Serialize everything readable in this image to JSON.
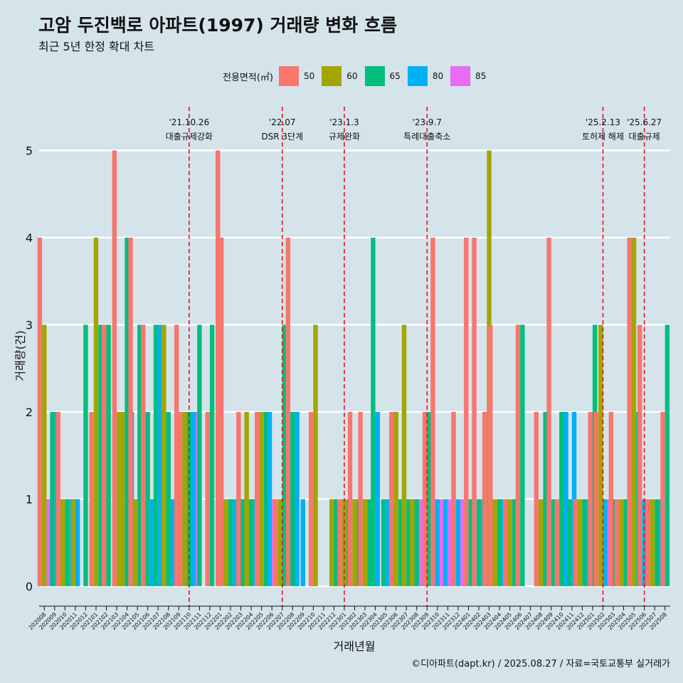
{
  "header": {
    "title": "고암 두진백로 아파트(1997) 거래량 변화 흐름",
    "subtitle": "최근 5년 한정 확대 차트"
  },
  "legend": {
    "title": "전용면적(㎡)",
    "items": [
      {
        "label": "50",
        "color": "#f8766d"
      },
      {
        "label": "60",
        "color": "#a3a500"
      },
      {
        "label": "65",
        "color": "#00bf7d"
      },
      {
        "label": "80",
        "color": "#00b0f6"
      },
      {
        "label": "85",
        "color": "#e76bf3"
      }
    ]
  },
  "caption": "©디아파트(dapt.kr) / 2025.08.27 / 자료=국토교통부 실거래가",
  "chart_data": {
    "type": "bar",
    "xlabel": "거래년월",
    "ylabel": "거래량(건)",
    "ylim": [
      -0.2,
      5.6
    ],
    "yticks": [
      0,
      1,
      2,
      3,
      4,
      5
    ],
    "grid": true,
    "legend_position": "top",
    "categories": [
      "202008",
      "202009",
      "202010",
      "202011",
      "202012",
      "202101",
      "202102",
      "202103",
      "202104",
      "202105",
      "202106",
      "202107",
      "202108",
      "202109",
      "202110",
      "202111",
      "202112",
      "202201",
      "202202",
      "202203",
      "202204",
      "202205",
      "202206",
      "202207",
      "202208",
      "202209",
      "202210",
      "202211",
      "202212",
      "202301",
      "202302",
      "202303",
      "202304",
      "202305",
      "202306",
      "202307",
      "202308",
      "202309",
      "202310",
      "202311",
      "202312",
      "202401",
      "202402",
      "202403",
      "202404",
      "202405",
      "202406",
      "202407",
      "202408",
      "202409",
      "202410",
      "202411",
      "202412",
      "202501",
      "202502",
      "202503",
      "202504",
      "202505",
      "202506",
      "202507",
      "202508"
    ],
    "series": [
      {
        "name": "50",
        "color": "#f8766d",
        "values": [
          4,
          0,
          2,
          0,
          0,
          2,
          3,
          5,
          0,
          4,
          3,
          0,
          0,
          3,
          2,
          0,
          2,
          5,
          4,
          2,
          0,
          2,
          0,
          1,
          4,
          0,
          2,
          0,
          0,
          1,
          2,
          2,
          0,
          0,
          2,
          0,
          0,
          2,
          4,
          0,
          2,
          4,
          4,
          2,
          3,
          1,
          3,
          0,
          2,
          4,
          1,
          0,
          1,
          2,
          2,
          2,
          1,
          4,
          3,
          1,
          2
        ]
      },
      {
        "name": "60",
        "color": "#a3a500",
        "values": [
          3,
          0,
          1,
          1,
          0,
          4,
          0,
          2,
          2,
          1,
          0,
          0,
          3,
          0,
          2,
          0,
          0,
          0,
          1,
          0,
          2,
          2,
          0,
          1,
          0,
          0,
          3,
          0,
          1,
          1,
          1,
          1,
          0,
          0,
          2,
          3,
          1,
          0,
          0,
          0,
          0,
          0,
          0,
          5,
          1,
          1,
          0,
          0,
          1,
          0,
          0,
          0,
          1,
          0,
          3,
          0,
          1,
          4,
          0,
          1,
          0
        ]
      },
      {
        "name": "65",
        "color": "#00bf7d",
        "values": [
          0,
          2,
          1,
          0,
          3,
          3,
          3,
          0,
          4,
          3,
          2,
          3,
          2,
          0,
          2,
          3,
          3,
          1,
          1,
          1,
          1,
          2,
          0,
          3,
          2,
          0,
          0,
          0,
          1,
          1,
          1,
          1,
          4,
          1,
          1,
          1,
          1,
          2,
          0,
          0,
          0,
          1,
          1,
          0,
          1,
          1,
          3,
          0,
          2,
          1,
          2,
          1,
          1,
          3,
          0,
          1,
          1,
          2,
          0,
          1,
          3
        ]
      },
      {
        "name": "80",
        "color": "#00b0f6",
        "values": [
          0,
          2,
          1,
          1,
          0,
          0,
          0,
          0,
          2,
          1,
          1,
          3,
          1,
          0,
          2,
          0,
          0,
          0,
          1,
          0,
          1,
          0,
          2,
          1,
          2,
          1,
          0,
          0,
          0,
          0,
          0,
          0,
          2,
          1,
          0,
          0,
          0,
          0,
          1,
          1,
          1,
          0,
          1,
          1,
          1,
          0,
          0,
          0,
          0,
          0,
          2,
          2,
          1,
          0,
          1,
          0,
          1,
          0,
          1,
          1,
          0
        ]
      },
      {
        "name": "85",
        "color": "#e76bf3",
        "values": [
          1,
          0,
          0,
          0,
          0,
          0,
          0,
          0,
          0,
          0,
          0,
          0,
          0,
          1,
          2,
          0,
          0,
          0,
          1,
          0,
          0,
          0,
          1,
          0,
          0,
          0,
          0,
          0,
          0,
          0,
          0,
          0,
          0,
          0,
          0,
          0,
          1,
          0,
          1,
          1,
          1,
          0,
          0,
          0,
          1,
          0,
          0,
          0,
          0,
          0,
          0,
          0,
          0,
          0,
          1,
          0,
          0,
          0,
          1,
          0,
          0
        ]
      }
    ],
    "annotations": [
      {
        "at": "202110",
        "date": "'21.10.26",
        "label": "대출규제강화"
      },
      {
        "at": "202207",
        "date": "'22.07",
        "label": "DSR 3단계"
      },
      {
        "at": "202301",
        "date": "'23.1.3",
        "label": "규제완화"
      },
      {
        "at": "202309",
        "date": "'23.9.7",
        "label": "특례대출축소"
      },
      {
        "at": "202502",
        "date": "'25.2.13",
        "label": "토허제 해제"
      },
      {
        "at": "202506",
        "date": "'25.6.27",
        "label": "대출규제"
      }
    ]
  }
}
